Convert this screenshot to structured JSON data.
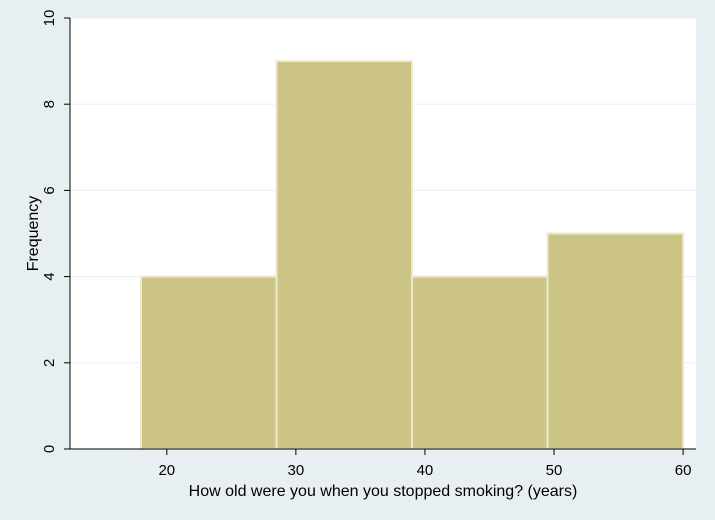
{
  "chart_data": {
    "type": "bar",
    "title": "",
    "xlabel": "How old were you when you stopped smoking? (years)",
    "ylabel": "Frequency",
    "bins": [
      {
        "x0": 18,
        "x1": 28.5,
        "value": 4
      },
      {
        "x0": 28.5,
        "x1": 39,
        "value": 9
      },
      {
        "x0": 39,
        "x1": 49.5,
        "value": 4
      },
      {
        "x0": 49.5,
        "x1": 60,
        "value": 5
      }
    ],
    "xlim": [
      12.5,
      61
    ],
    "ylim": [
      0,
      10
    ],
    "xticks": [
      20,
      30,
      40,
      50,
      60
    ],
    "yticks": [
      0,
      2,
      4,
      6,
      8,
      10
    ],
    "grid": true,
    "legend": "none",
    "colors": {
      "bar_fill": "#cbc484",
      "bar_stroke": "#ece9cd",
      "plot_background": "#ffffff",
      "outer_background": "#e8eff2",
      "grid": "#eaf2f3",
      "axis": "#000000"
    }
  }
}
